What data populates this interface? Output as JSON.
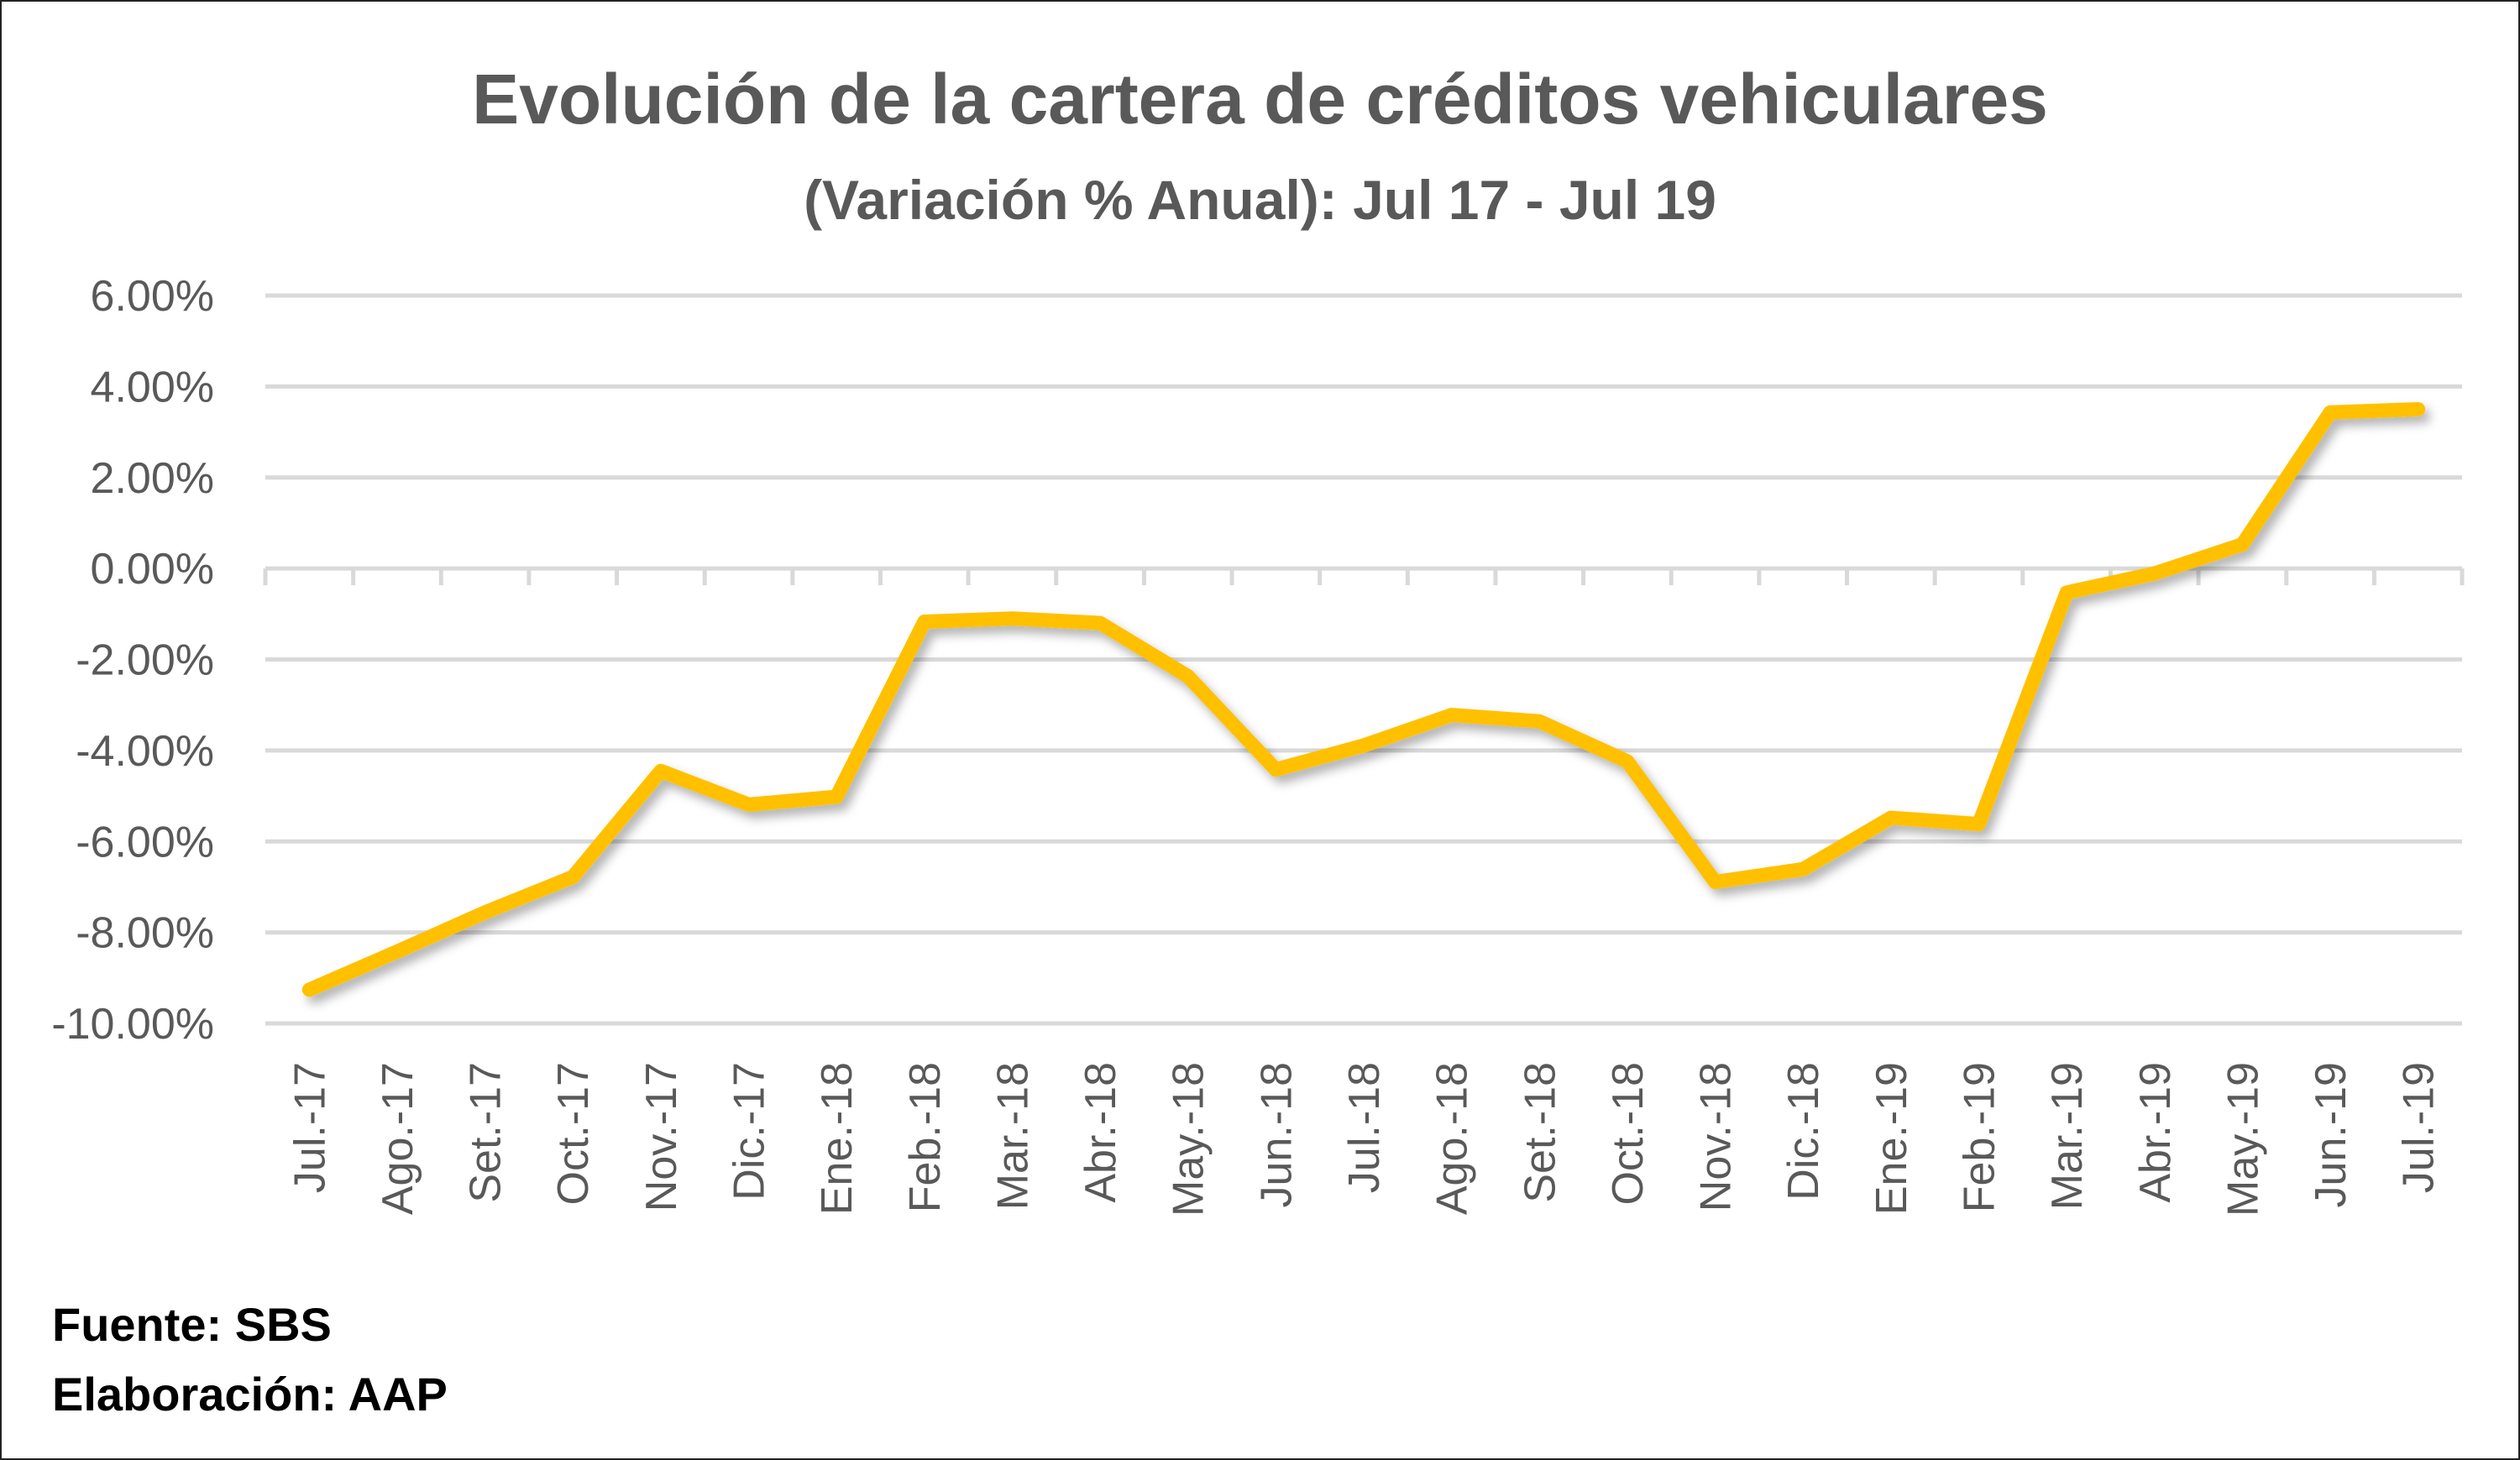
{
  "chart_data": {
    "type": "line",
    "title": "Evolución de la cartera de créditos vehiculares",
    "subtitle": "(Variación % Anual): Jul 17 - Jul 19",
    "xlabel": "",
    "ylabel": "",
    "ylim": [
      -10,
      6
    ],
    "yticks": [
      6,
      4,
      2,
      0,
      -2,
      -4,
      -6,
      -8,
      -10
    ],
    "ytick_labels": [
      "6.00%",
      "4.00%",
      "2.00%",
      "0.00%",
      "-2.00%",
      "-4.00%",
      "-6.00%",
      "-8.00%",
      "-10.00%"
    ],
    "grid": true,
    "legend": "none",
    "categories": [
      "Jul.-17",
      "Ago.-17",
      "Set.-17",
      "Oct.-17",
      "Nov.-17",
      "Dic.-17",
      "Ene.-18",
      "Feb.-18",
      "Mar.-18",
      "Abr.-18",
      "May.-18",
      "Jun.-18",
      "Jul.-18",
      "Ago.-18",
      "Set.-18",
      "Oct.-18",
      "Nov.-18",
      "Dic.-18",
      "Ene.-19",
      "Feb.-19",
      "Mar.-19",
      "Abr.-19",
      "May.-19",
      "Jun.-19",
      "Jul.-19"
    ],
    "series": [
      {
        "name": "Variación % Anual",
        "color": "#FFC000",
        "values": [
          -9.26,
          -8.42,
          -7.56,
          -6.78,
          -4.45,
          -5.19,
          -5.02,
          -1.17,
          -1.1,
          -1.2,
          -2.37,
          -4.42,
          -3.89,
          -3.22,
          -3.36,
          -4.24,
          -6.89,
          -6.61,
          -5.48,
          -5.62,
          -0.53,
          -0.11,
          0.53,
          3.43,
          3.5
        ]
      }
    ]
  },
  "footer": {
    "source": "Fuente: SBS",
    "author": "Elaboración: AAP"
  }
}
